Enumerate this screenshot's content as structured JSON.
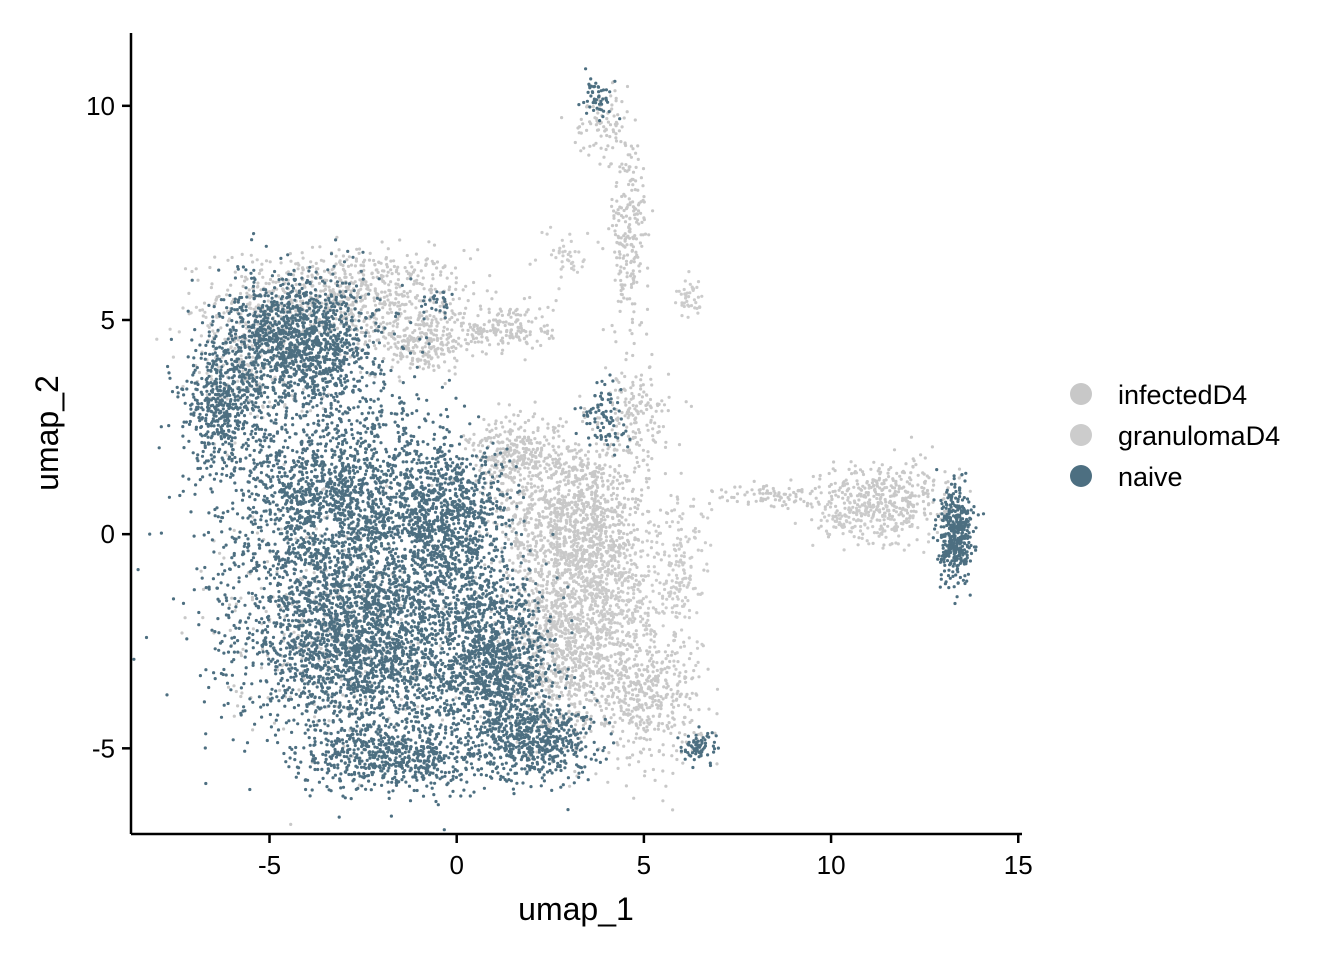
{
  "chart_data": {
    "type": "scatter",
    "title": "",
    "xlabel": "umap_1",
    "ylabel": "umap_2",
    "xlim": [
      -8.7,
      15.1
    ],
    "ylim": [
      -7.0,
      11.7
    ],
    "x_ticks": [
      {
        "value": -5,
        "label": "-5"
      },
      {
        "value": 0,
        "label": "0"
      },
      {
        "value": 5,
        "label": "5"
      },
      {
        "value": 10,
        "label": "10"
      },
      {
        "value": 15,
        "label": "15"
      }
    ],
    "y_ticks": [
      {
        "value": -5,
        "label": "-5"
      },
      {
        "value": 0,
        "label": "0"
      },
      {
        "value": 5,
        "label": "5"
      },
      {
        "value": 10,
        "label": "10"
      }
    ],
    "grid": false,
    "legend_position": "right",
    "series": [
      {
        "name": "infectedD4",
        "color": "#c8c8c8",
        "clusters": [
          {
            "cx": -3.0,
            "cy": 5.6,
            "sx": 2.2,
            "sy": 0.7,
            "n": 700
          },
          {
            "cx": -1.0,
            "cy": 4.5,
            "sx": 1.0,
            "sy": 0.5,
            "n": 250
          },
          {
            "cx": 3.2,
            "cy": 0.2,
            "sx": 1.3,
            "sy": 1.4,
            "n": 1300
          },
          {
            "cx": 2.8,
            "cy": -2.8,
            "sx": 1.4,
            "sy": 1.2,
            "n": 900
          },
          {
            "cx": 5.0,
            "cy": -3.8,
            "sx": 1.0,
            "sy": 1.0,
            "n": 450
          },
          {
            "cx": 1.5,
            "cy": 1.8,
            "sx": 0.8,
            "sy": 0.6,
            "n": 300
          },
          {
            "cx": 4.8,
            "cy": 2.8,
            "sx": 0.6,
            "sy": 0.7,
            "n": 150
          },
          {
            "cx": 4.6,
            "cy": 7.0,
            "sx": 0.35,
            "sy": 1.5,
            "n": 220
          },
          {
            "cx": 3.9,
            "cy": 9.6,
            "sx": 0.5,
            "sy": 0.5,
            "n": 80
          },
          {
            "cx": 11.5,
            "cy": 0.9,
            "sx": 1.2,
            "sy": 0.55,
            "n": 350
          },
          {
            "cx": 8.3,
            "cy": 0.9,
            "sx": 1.1,
            "sy": 0.2,
            "n": 90
          },
          {
            "cx": 1.3,
            "cy": 4.8,
            "sx": 0.9,
            "sy": 0.4,
            "n": 180
          },
          {
            "cx": -3.5,
            "cy": -2.0,
            "sx": 1.8,
            "sy": 1.8,
            "n": 350
          }
        ]
      },
      {
        "name": "granulomaD4",
        "color": "#cccccc",
        "clusters": [
          {
            "cx": -5.5,
            "cy": 4.2,
            "sx": 1.2,
            "sy": 1.0,
            "n": 250
          },
          {
            "cx": 6.0,
            "cy": -1.0,
            "sx": 0.5,
            "sy": 1.2,
            "n": 150
          },
          {
            "cx": 4.0,
            "cy": -1.5,
            "sx": 1.1,
            "sy": 1.0,
            "n": 350
          },
          {
            "cx": 6.2,
            "cy": 5.5,
            "sx": 0.25,
            "sy": 0.3,
            "n": 40
          },
          {
            "cx": 3.0,
            "cy": 6.5,
            "sx": 0.4,
            "sy": 0.4,
            "n": 40
          },
          {
            "cx": 11.0,
            "cy": 0.3,
            "sx": 1.0,
            "sy": 0.4,
            "n": 150
          }
        ]
      },
      {
        "name": "naive",
        "color": "#4d6f81",
        "clusters": [
          {
            "cx": -4.2,
            "cy": 4.5,
            "sx": 1.4,
            "sy": 1.0,
            "n": 1400
          },
          {
            "cx": -6.3,
            "cy": 3.0,
            "sx": 0.7,
            "sy": 0.9,
            "n": 450
          },
          {
            "cx": -3.2,
            "cy": 0.8,
            "sx": 2.0,
            "sy": 1.6,
            "n": 1800
          },
          {
            "cx": -2.5,
            "cy": -2.5,
            "sx": 2.2,
            "sy": 1.6,
            "n": 2600
          },
          {
            "cx": -0.2,
            "cy": 0.3,
            "sx": 1.1,
            "sy": 1.3,
            "n": 900
          },
          {
            "cx": 1.0,
            "cy": -3.0,
            "sx": 1.0,
            "sy": 1.4,
            "n": 1100
          },
          {
            "cx": 2.2,
            "cy": -4.8,
            "sx": 1.0,
            "sy": 0.6,
            "n": 500
          },
          {
            "cx": -1.5,
            "cy": -5.2,
            "sx": 1.8,
            "sy": 0.5,
            "n": 600
          },
          {
            "cx": 13.3,
            "cy": 0.0,
            "sx": 0.3,
            "sy": 0.75,
            "n": 420
          },
          {
            "cx": 6.5,
            "cy": -5.0,
            "sx": 0.35,
            "sy": 0.25,
            "n": 70
          },
          {
            "cx": 4.0,
            "cy": 2.8,
            "sx": 0.4,
            "sy": 0.5,
            "n": 90
          },
          {
            "cx": 3.7,
            "cy": 10.2,
            "sx": 0.3,
            "sy": 0.35,
            "n": 50
          },
          {
            "cx": -0.5,
            "cy": 5.4,
            "sx": 0.3,
            "sy": 0.2,
            "n": 25
          }
        ]
      }
    ]
  }
}
